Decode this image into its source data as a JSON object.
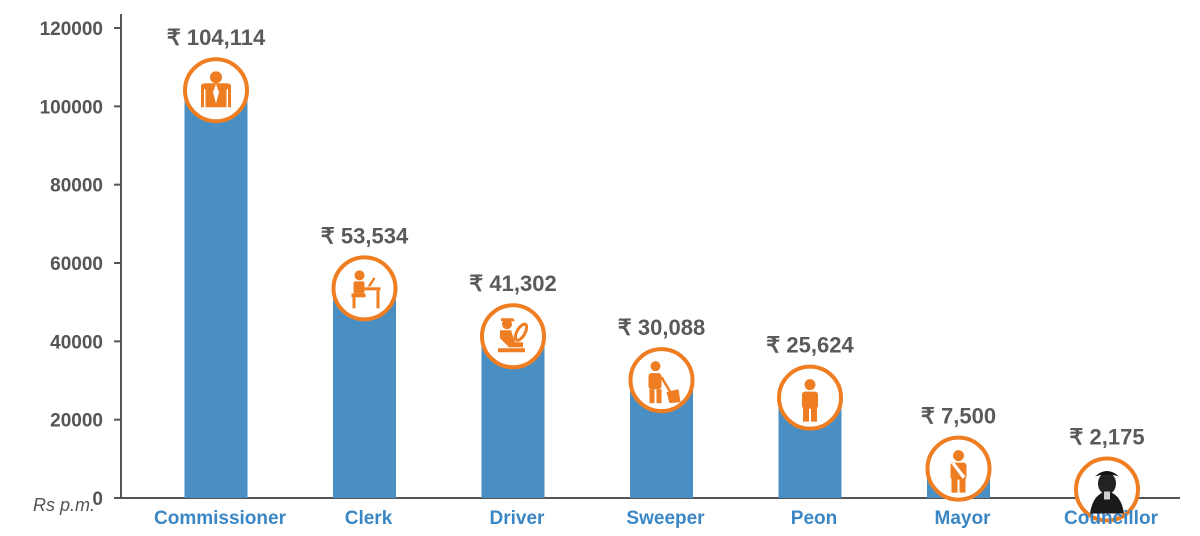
{
  "chart_data": {
    "type": "bar",
    "unit_label": "Rs p.m.",
    "categories": [
      "Commissioner",
      "Clerk",
      "Driver",
      "Sweeper",
      "Peon",
      "Mayor",
      "Councillor"
    ],
    "values": [
      104114,
      53534,
      41302,
      30088,
      25624,
      7500,
      2175
    ],
    "value_labels": [
      "₹ 104,114",
      "₹ 53,534",
      "₹ 41,302",
      "₹ 30,088",
      "₹ 25,624",
      "₹ 7,500",
      "₹ 2,175"
    ],
    "icons": [
      "officer-icon",
      "clerk-at-desk-icon",
      "driver-icon",
      "sweeper-icon",
      "peon-icon",
      "mayor-icon",
      "councillor-portrait-icon"
    ],
    "yticks": [
      "0",
      "20000",
      "40000",
      "60000",
      "80000",
      "100000",
      "120000"
    ],
    "ylim": [
      0,
      120000
    ],
    "grid": false,
    "colors": {
      "bar": "#4a8fc3",
      "icon_ring": "#ef7d22",
      "icon_fill": "#ef7d22",
      "category_text": "#3b87c5",
      "axis": "#555555"
    }
  }
}
